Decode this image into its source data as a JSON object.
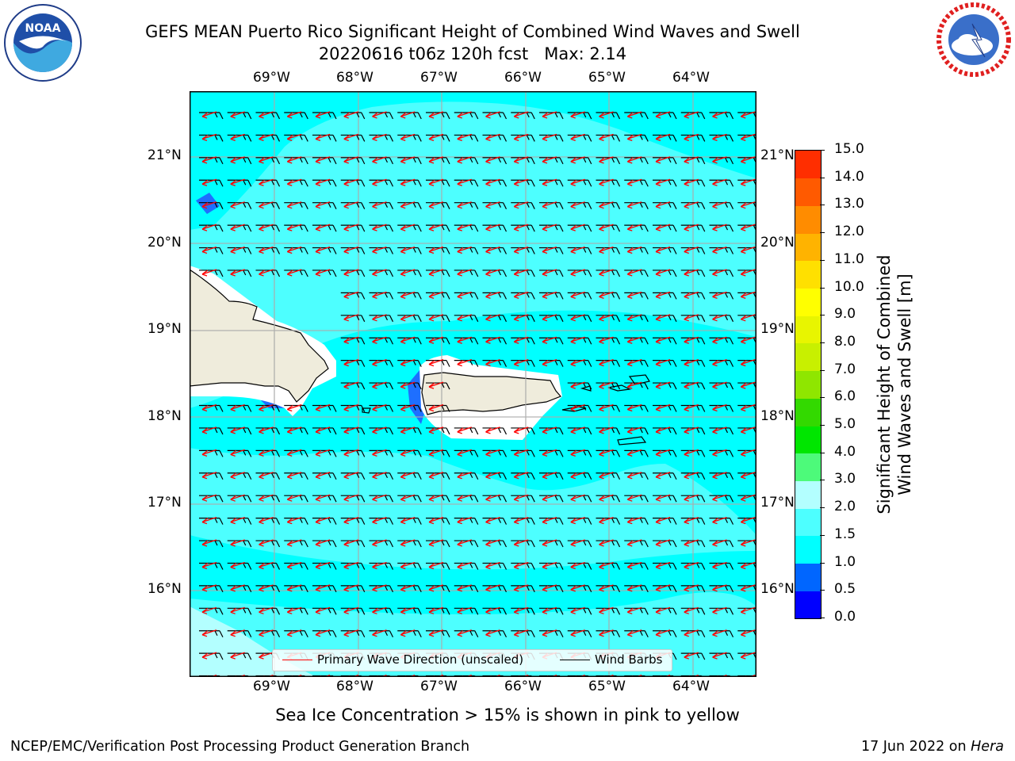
{
  "title": {
    "line1": "GEFS MEAN Puerto Rico Significant Height of Combined Wind Waves and Swell",
    "line2": "20220616 t06z 120h fcst   Max: 2.14"
  },
  "logos": {
    "left": "noaa-logo",
    "right": "nws-logo"
  },
  "map": {
    "lon_labels": [
      "69°W",
      "68°W",
      "67°W",
      "66°W",
      "65°W",
      "64°W"
    ],
    "lat_labels": [
      "21°N",
      "20°N",
      "19°N",
      "18°N",
      "17°N",
      "16°N"
    ],
    "ocean_color": "#00ffff",
    "land_color": "#efecdc",
    "arrow_color": "#ff0000",
    "barb_color": "#000000",
    "primary_wave_direction": "northwest-to-west",
    "wind_barbs": "easterly"
  },
  "legend": {
    "wave_label": "Primary Wave Direction (unscaled)",
    "barb_label": "Wind Barbs"
  },
  "colorbar": {
    "label_line1": "Significant Height of Combined",
    "label_line2": "Wind Waves and Swell [m]",
    "ticks": [
      "0.0",
      "0.5",
      "1.0",
      "1.5",
      "2.0",
      "3.0",
      "4.0",
      "5.0",
      "6.0",
      "7.0",
      "8.0",
      "9.0",
      "10.0",
      "11.0",
      "12.0",
      "13.0",
      "14.0",
      "15.0"
    ],
    "colors": [
      "#0000ff",
      "#0066ff",
      "#00ffff",
      "#4dffff",
      "#b3ffff",
      "#4dfa7a",
      "#00e600",
      "#33d900",
      "#8fe600",
      "#c8f000",
      "#e8f500",
      "#ffff00",
      "#ffe000",
      "#ffb300",
      "#ff8c00",
      "#ff5a00",
      "#ff2e00",
      "#ff0000"
    ]
  },
  "caption": "Sea Ice Concentration > 15% is shown in pink to yellow",
  "footer": {
    "left": "NCEP/EMC/Verification Post Processing Product Generation Branch",
    "date": "17 Jun 2022 on ",
    "machine": "Hera"
  }
}
